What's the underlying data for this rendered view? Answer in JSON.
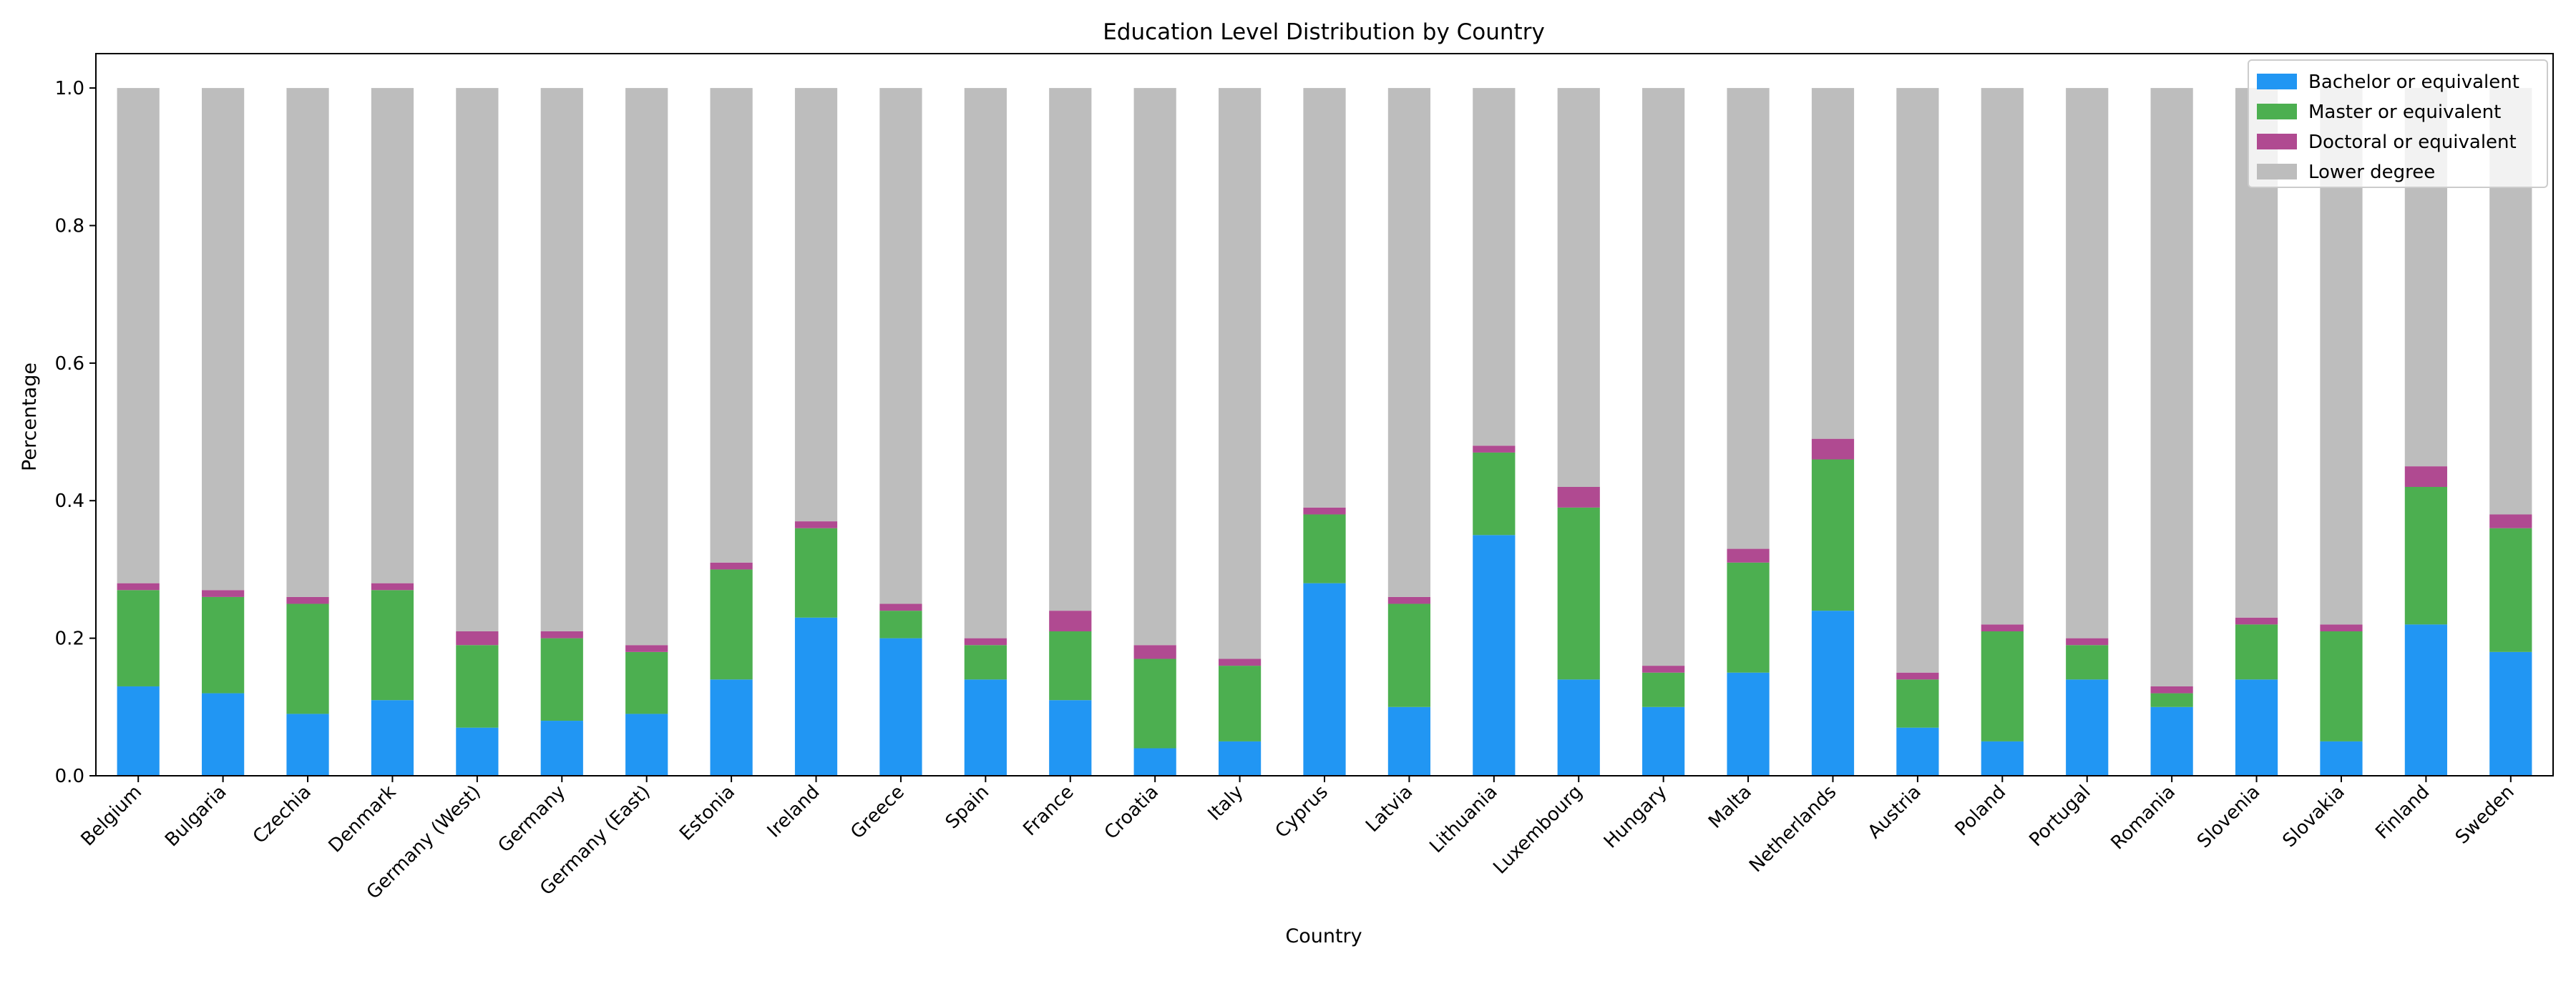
{
  "colors": {
    "bachelor": "#2196f3",
    "master": "#4caf50",
    "doctoral": "#b04a91",
    "lower": "#bdbdbd"
  },
  "chart_data": {
    "type": "bar",
    "stacked": true,
    "title": "Education Level Distribution by Country",
    "xlabel": "Country",
    "ylabel": "Percentage",
    "ylim": [
      0,
      1.05
    ],
    "yticks": [
      "0.0",
      "0.2",
      "0.4",
      "0.6",
      "0.8",
      "1.0"
    ],
    "grid": false,
    "legend_position": "top-right",
    "categories": [
      "Belgium",
      "Bulgaria",
      "Czechia",
      "Denmark",
      "Germany (West)",
      "Germany",
      "Germany (East)",
      "Estonia",
      "Ireland",
      "Greece",
      "Spain",
      "France",
      "Croatia",
      "Italy",
      "Cyprus",
      "Latvia",
      "Lithuania",
      "Luxembourg",
      "Hungary",
      "Malta",
      "Netherlands",
      "Austria",
      "Poland",
      "Portugal",
      "Romania",
      "Slovenia",
      "Slovakia",
      "Finland",
      "Sweden"
    ],
    "series": [
      {
        "name": "Bachelor or equivalent",
        "color_key": "bachelor",
        "values": [
          0.13,
          0.12,
          0.09,
          0.11,
          0.07,
          0.08,
          0.09,
          0.14,
          0.23,
          0.2,
          0.14,
          0.11,
          0.04,
          0.05,
          0.28,
          0.1,
          0.35,
          0.14,
          0.1,
          0.15,
          0.24,
          0.07,
          0.05,
          0.14,
          0.1,
          0.14,
          0.05,
          0.22,
          0.18
        ]
      },
      {
        "name": "Master or equivalent",
        "color_key": "master",
        "values": [
          0.14,
          0.14,
          0.16,
          0.16,
          0.12,
          0.12,
          0.09,
          0.16,
          0.13,
          0.04,
          0.05,
          0.1,
          0.13,
          0.11,
          0.1,
          0.15,
          0.12,
          0.25,
          0.05,
          0.16,
          0.22,
          0.07,
          0.16,
          0.05,
          0.02,
          0.08,
          0.16,
          0.2,
          0.18
        ]
      },
      {
        "name": "Doctoral or equivalent",
        "color_key": "doctoral",
        "values": [
          0.01,
          0.01,
          0.01,
          0.01,
          0.02,
          0.01,
          0.01,
          0.01,
          0.01,
          0.01,
          0.01,
          0.03,
          0.02,
          0.01,
          0.01,
          0.01,
          0.01,
          0.03,
          0.01,
          0.02,
          0.03,
          0.01,
          0.01,
          0.01,
          0.01,
          0.01,
          0.01,
          0.03,
          0.02
        ]
      },
      {
        "name": "Lower degree",
        "color_key": "lower",
        "values": [
          0.72,
          0.73,
          0.74,
          0.72,
          0.79,
          0.79,
          0.81,
          0.69,
          0.63,
          0.75,
          0.8,
          0.76,
          0.81,
          0.83,
          0.61,
          0.74,
          0.52,
          0.58,
          0.84,
          0.67,
          0.51,
          0.85,
          0.78,
          0.8,
          0.87,
          0.77,
          0.78,
          0.55,
          0.62
        ]
      }
    ]
  }
}
